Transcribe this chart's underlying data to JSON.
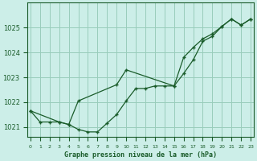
{
  "title": "Graphe pression niveau de la mer (hPa)",
  "background_color": "#cceee8",
  "grid_color": "#99ccbb",
  "line_color": "#1a5c2a",
  "marker_color": "#1a5c2a",
  "xlim_min": -0.3,
  "xlim_max": 23.3,
  "ylim_min": 1020.6,
  "ylim_max": 1026.0,
  "yticks": [
    1021,
    1022,
    1023,
    1024,
    1025
  ],
  "xtick_labels": [
    "0",
    "1",
    "2",
    "3",
    "4",
    "5",
    "6",
    "7",
    "8",
    "9",
    "10",
    "11",
    "12",
    "13",
    "14",
    "15",
    "16",
    "17",
    "18",
    "19",
    "20",
    "21",
    "22",
    "23"
  ],
  "series1_x": [
    0,
    1,
    2,
    3,
    4,
    5,
    6,
    7,
    8,
    9,
    10,
    11,
    12,
    13,
    14,
    15,
    16,
    17,
    18,
    19,
    20,
    21,
    22,
    23
  ],
  "series1_y": [
    1021.65,
    1021.2,
    1021.2,
    1021.2,
    1021.1,
    1020.9,
    1020.8,
    1020.8,
    1021.15,
    1021.5,
    1022.05,
    1022.55,
    1022.55,
    1022.65,
    1022.65,
    1022.65,
    1023.15,
    1023.7,
    1024.45,
    1024.65,
    1025.05,
    1025.35,
    1025.1,
    1025.35
  ],
  "series2_x": [
    0,
    3,
    4,
    5,
    9,
    10,
    15,
    16,
    17,
    18,
    19,
    20,
    21,
    22,
    23
  ],
  "series2_y": [
    1021.65,
    1021.2,
    1021.1,
    1022.05,
    1022.7,
    1023.3,
    1022.65,
    1023.8,
    1024.2,
    1024.55,
    1024.75,
    1025.05,
    1025.35,
    1025.1,
    1025.35
  ]
}
